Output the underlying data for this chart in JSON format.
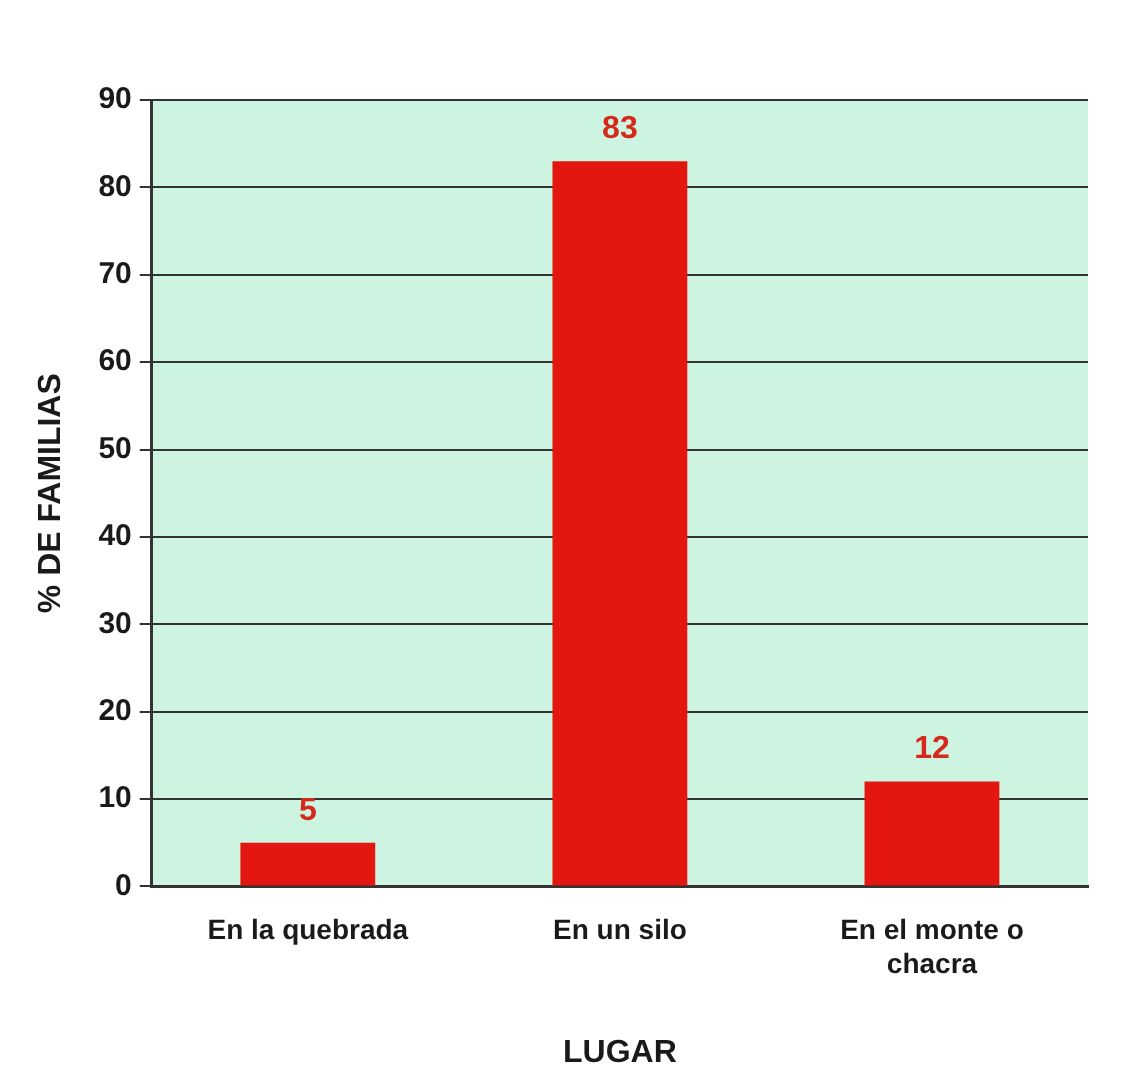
{
  "chart_data": {
    "type": "bar",
    "xlabel": "LUGAR",
    "ylabel": "% DE FAMILIAS",
    "categories": [
      "En la quebrada",
      "En un silo",
      "En el monte o chacra"
    ],
    "values": [
      5,
      83,
      12
    ],
    "color": "#e3170f",
    "ylim": [
      0,
      90
    ],
    "yticks": [
      0,
      10,
      20,
      30,
      40,
      50,
      60,
      70,
      80,
      90
    ],
    "grid": "y",
    "data_labels": true
  }
}
